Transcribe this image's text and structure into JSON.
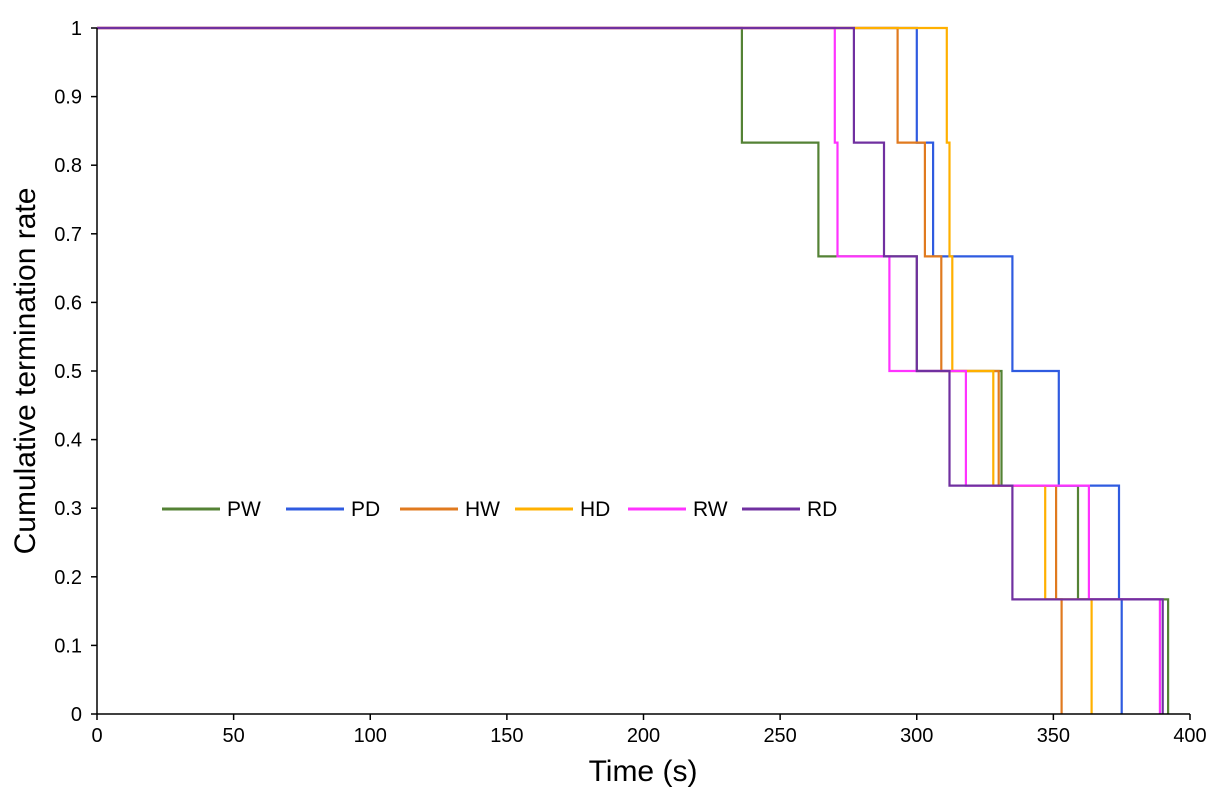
{
  "chart_data": {
    "type": "line",
    "step": true,
    "xlabel": "Time (s)",
    "ylabel": "Cumulative termination rate",
    "xlim": [
      0,
      400
    ],
    "ylim": [
      0,
      1
    ],
    "xticks": [
      "0",
      "50",
      "100",
      "150",
      "200",
      "250",
      "300",
      "350",
      "400"
    ],
    "yticks": [
      "0",
      "0.1",
      "0.2",
      "0.3",
      "0.4",
      "0.5",
      "0.6",
      "0.7",
      "0.8",
      "0.9",
      "1"
    ],
    "grid": false,
    "legend_position": "center-left",
    "series": [
      {
        "name": "PW",
        "color": "#548235",
        "x": [
          0,
          236,
          236,
          264,
          264,
          300,
          300,
          331,
          331,
          359,
          359,
          392,
          392
        ],
        "y": [
          1,
          1,
          0.833,
          0.833,
          0.667,
          0.667,
          0.5,
          0.5,
          0.333,
          0.333,
          0.167,
          0.167,
          0
        ]
      },
      {
        "name": "PD",
        "color": "#2f5be0",
        "x": [
          0,
          300,
          300,
          306,
          306,
          335,
          335,
          352,
          352,
          374,
          374,
          375,
          375
        ],
        "y": [
          1,
          1,
          0.833,
          0.833,
          0.667,
          0.667,
          0.5,
          0.5,
          0.333,
          0.333,
          0.167,
          0.167,
          0
        ]
      },
      {
        "name": "HW",
        "color": "#e07a1f",
        "x": [
          0,
          293,
          293,
          303,
          303,
          309,
          309,
          330,
          330,
          351,
          351,
          353,
          353
        ],
        "y": [
          1,
          1,
          0.833,
          0.833,
          0.667,
          0.667,
          0.5,
          0.5,
          0.333,
          0.333,
          0.167,
          0.167,
          0
        ]
      },
      {
        "name": "HD",
        "color": "#ffb000",
        "x": [
          0,
          311,
          311,
          312,
          312,
          313,
          313,
          328,
          328,
          347,
          347,
          364,
          364
        ],
        "y": [
          1,
          1,
          0.833,
          0.833,
          0.667,
          0.667,
          0.5,
          0.5,
          0.333,
          0.333,
          0.167,
          0.167,
          0
        ]
      },
      {
        "name": "RW",
        "color": "#ff33ff",
        "x": [
          0,
          270,
          270,
          271,
          271,
          290,
          290,
          318,
          318,
          363,
          363,
          389,
          389
        ],
        "y": [
          1,
          1,
          0.833,
          0.833,
          0.667,
          0.667,
          0.5,
          0.5,
          0.333,
          0.333,
          0.167,
          0.167,
          0
        ]
      },
      {
        "name": "RD",
        "color": "#7030a0",
        "x": [
          0,
          277,
          277,
          288,
          288,
          300,
          300,
          312,
          312,
          335,
          335,
          390,
          390
        ],
        "y": [
          1,
          1,
          0.833,
          0.833,
          0.667,
          0.667,
          0.5,
          0.5,
          0.333,
          0.333,
          0.167,
          0.167,
          0
        ]
      }
    ]
  }
}
